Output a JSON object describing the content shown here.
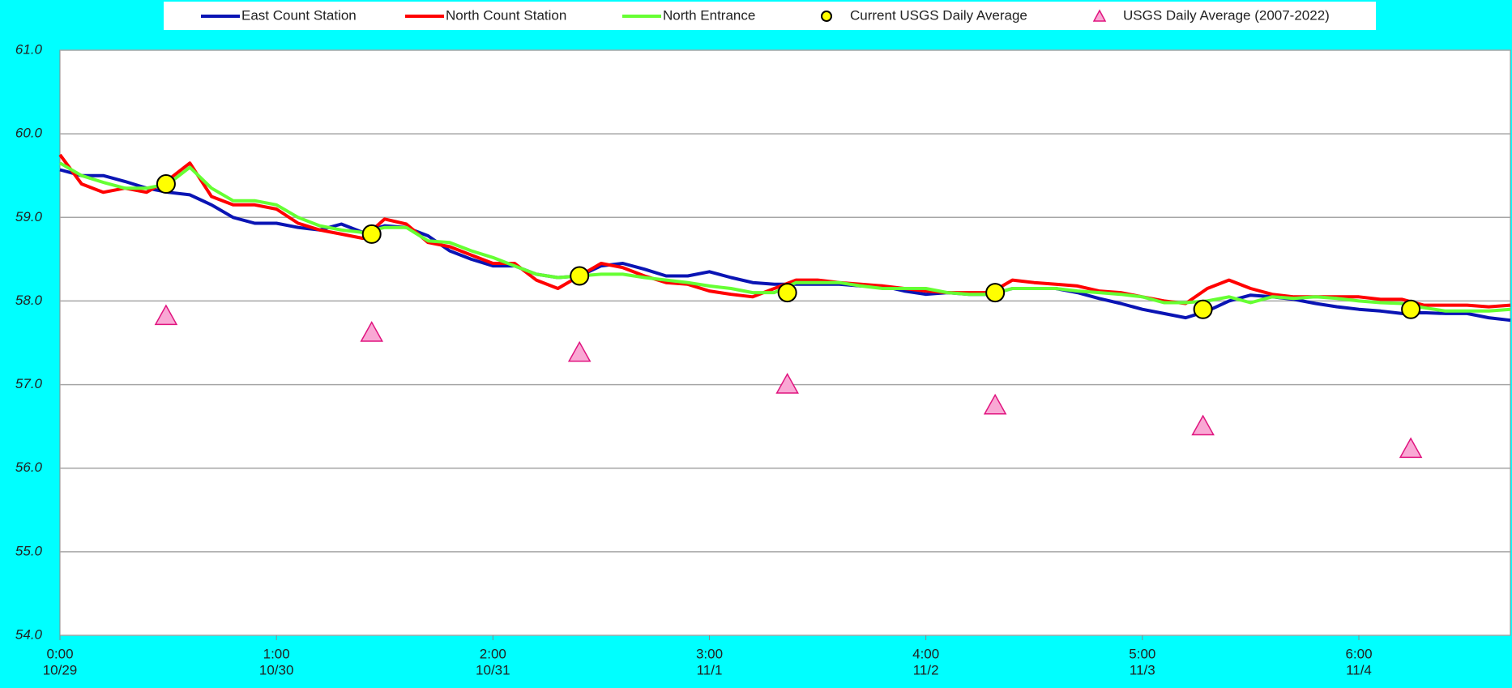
{
  "chart_data": {
    "type": "line",
    "xlim": [
      0,
      6.7
    ],
    "ylim": [
      54,
      61
    ],
    "xticks": [
      {
        "value": 0,
        "label": "0:00",
        "date": "10/29"
      },
      {
        "value": 1,
        "label": "1:00",
        "date": "10/30"
      },
      {
        "value": 2,
        "label": "2:00",
        "date": "10/31"
      },
      {
        "value": 3,
        "label": "3:00",
        "date": "11/1"
      },
      {
        "value": 4,
        "label": "4:00",
        "date": "11/2"
      },
      {
        "value": 5,
        "label": "5:00",
        "date": "11/3"
      },
      {
        "value": 6,
        "label": "6:00",
        "date": "11/4"
      }
    ],
    "yticks": [
      {
        "value": 54,
        "label": "54.0"
      },
      {
        "value": 55,
        "label": "55.0"
      },
      {
        "value": 56,
        "label": "56.0"
      },
      {
        "value": 57,
        "label": "57.0"
      },
      {
        "value": 58,
        "label": "58.0"
      },
      {
        "value": 59,
        "label": "59.0"
      },
      {
        "value": 60,
        "label": "60.0"
      },
      {
        "value": 61,
        "label": "61.0"
      }
    ],
    "grid": true,
    "series": [
      {
        "name": "East Count Station",
        "type": "line",
        "color": "#0a14b4",
        "x": [
          0,
          0.1,
          0.2,
          0.3,
          0.4,
          0.5,
          0.6,
          0.7,
          0.8,
          0.9,
          1,
          1.1,
          1.2,
          1.3,
          1.4,
          1.5,
          1.6,
          1.7,
          1.8,
          1.9,
          2,
          2.1,
          2.2,
          2.3,
          2.4,
          2.5,
          2.6,
          2.7,
          2.8,
          2.9,
          3,
          3.1,
          3.2,
          3.3,
          3.4,
          3.5,
          3.6,
          3.7,
          3.8,
          3.9,
          4,
          4.1,
          4.2,
          4.3,
          4.4,
          4.5,
          4.6,
          4.7,
          4.8,
          4.9,
          5,
          5.1,
          5.2,
          5.3,
          5.4,
          5.5,
          5.6,
          5.7,
          5.8,
          5.9,
          6,
          6.1,
          6.2,
          6.3,
          6.4,
          6.5,
          6.6,
          6.7
        ],
        "values": [
          59.57,
          59.5,
          59.5,
          59.43,
          59.35,
          59.3,
          59.27,
          59.15,
          59.0,
          58.93,
          58.93,
          58.88,
          58.85,
          58.92,
          58.82,
          58.9,
          58.88,
          58.78,
          58.6,
          58.5,
          58.42,
          58.42,
          58.32,
          58.28,
          58.3,
          58.42,
          58.45,
          58.38,
          58.3,
          58.3,
          58.35,
          58.28,
          58.22,
          58.2,
          58.2,
          58.2,
          58.2,
          58.18,
          58.18,
          58.12,
          58.08,
          58.1,
          58.08,
          58.08,
          58.15,
          58.15,
          58.15,
          58.1,
          58.03,
          57.97,
          57.9,
          57.85,
          57.8,
          57.88,
          58.0,
          58.07,
          58.05,
          58.02,
          57.97,
          57.93,
          57.9,
          57.88,
          57.85,
          57.86,
          57.85,
          57.85,
          57.8,
          57.77
        ]
      },
      {
        "name": "North Count Station",
        "type": "line",
        "color": "#ff0000",
        "x": [
          0,
          0.1,
          0.2,
          0.3,
          0.4,
          0.5,
          0.6,
          0.7,
          0.8,
          0.9,
          1,
          1.1,
          1.2,
          1.3,
          1.4,
          1.5,
          1.6,
          1.7,
          1.8,
          1.9,
          2,
          2.1,
          2.2,
          2.3,
          2.4,
          2.5,
          2.6,
          2.7,
          2.8,
          2.9,
          3,
          3.1,
          3.2,
          3.3,
          3.4,
          3.5,
          3.6,
          3.7,
          3.8,
          3.9,
          4,
          4.1,
          4.2,
          4.3,
          4.4,
          4.5,
          4.6,
          4.7,
          4.8,
          4.9,
          5,
          5.1,
          5.2,
          5.3,
          5.4,
          5.5,
          5.6,
          5.7,
          5.8,
          5.9,
          6,
          6.1,
          6.2,
          6.3,
          6.4,
          6.5,
          6.6,
          6.7
        ],
        "values": [
          59.75,
          59.4,
          59.3,
          59.35,
          59.3,
          59.45,
          59.65,
          59.25,
          59.15,
          59.15,
          59.1,
          58.93,
          58.85,
          58.8,
          58.75,
          58.98,
          58.92,
          58.7,
          58.65,
          58.55,
          58.45,
          58.45,
          58.25,
          58.15,
          58.3,
          58.45,
          58.4,
          58.3,
          58.22,
          58.2,
          58.12,
          58.08,
          58.05,
          58.15,
          58.25,
          58.25,
          58.22,
          58.2,
          58.18,
          58.15,
          58.12,
          58.1,
          58.1,
          58.1,
          58.25,
          58.22,
          58.2,
          58.18,
          58.12,
          58.1,
          58.05,
          58.0,
          57.97,
          58.15,
          58.25,
          58.15,
          58.08,
          58.05,
          58.05,
          58.05,
          58.05,
          58.02,
          58.02,
          57.95,
          57.95,
          57.95,
          57.93,
          57.95
        ]
      },
      {
        "name": "North Entrance",
        "type": "line",
        "color": "#66ff33",
        "x": [
          0,
          0.1,
          0.2,
          0.3,
          0.4,
          0.5,
          0.6,
          0.7,
          0.8,
          0.9,
          1,
          1.1,
          1.2,
          1.3,
          1.4,
          1.5,
          1.6,
          1.7,
          1.8,
          1.9,
          2,
          2.1,
          2.2,
          2.3,
          2.4,
          2.5,
          2.6,
          2.7,
          2.8,
          2.9,
          3,
          3.1,
          3.2,
          3.3,
          3.4,
          3.5,
          3.6,
          3.7,
          3.8,
          3.9,
          4,
          4.1,
          4.2,
          4.3,
          4.4,
          4.5,
          4.6,
          4.7,
          4.8,
          4.9,
          5,
          5.1,
          5.2,
          5.3,
          5.4,
          5.5,
          5.6,
          5.7,
          5.8,
          5.9,
          6,
          6.1,
          6.2,
          6.3,
          6.4,
          6.5,
          6.6,
          6.7
        ],
        "values": [
          59.65,
          59.5,
          59.42,
          59.35,
          59.35,
          59.4,
          59.6,
          59.35,
          59.2,
          59.2,
          59.15,
          59.0,
          58.9,
          58.85,
          58.82,
          58.88,
          58.88,
          58.72,
          58.7,
          58.6,
          58.52,
          58.42,
          58.32,
          58.28,
          58.3,
          58.32,
          58.32,
          58.28,
          58.25,
          58.22,
          58.18,
          58.15,
          58.1,
          58.1,
          58.22,
          58.22,
          58.22,
          58.18,
          58.15,
          58.15,
          58.15,
          58.1,
          58.08,
          58.08,
          58.15,
          58.15,
          58.15,
          58.12,
          58.1,
          58.08,
          58.05,
          57.98,
          57.98,
          58.0,
          58.05,
          57.98,
          58.05,
          58.03,
          58.05,
          58.03,
          58.0,
          57.98,
          57.97,
          57.92,
          57.88,
          57.88,
          57.88,
          57.9
        ]
      },
      {
        "name": "Current USGS Daily Average",
        "type": "scatter",
        "marker": "circle",
        "color": "#ffff00",
        "x": [
          0.49,
          1.44,
          2.4,
          3.36,
          4.32,
          5.28,
          6.24
        ],
        "values": [
          59.4,
          58.8,
          58.3,
          58.1,
          58.1,
          57.9,
          57.9
        ]
      },
      {
        "name": "USGS Daily Average (2007-2022)",
        "type": "scatter",
        "marker": "triangle",
        "color": "#f9a8d4",
        "x": [
          0.49,
          1.44,
          2.4,
          3.36,
          4.32,
          5.28,
          6.24
        ],
        "values": [
          57.82,
          57.62,
          57.38,
          57.0,
          56.75,
          56.5,
          56.23
        ]
      }
    ]
  }
}
